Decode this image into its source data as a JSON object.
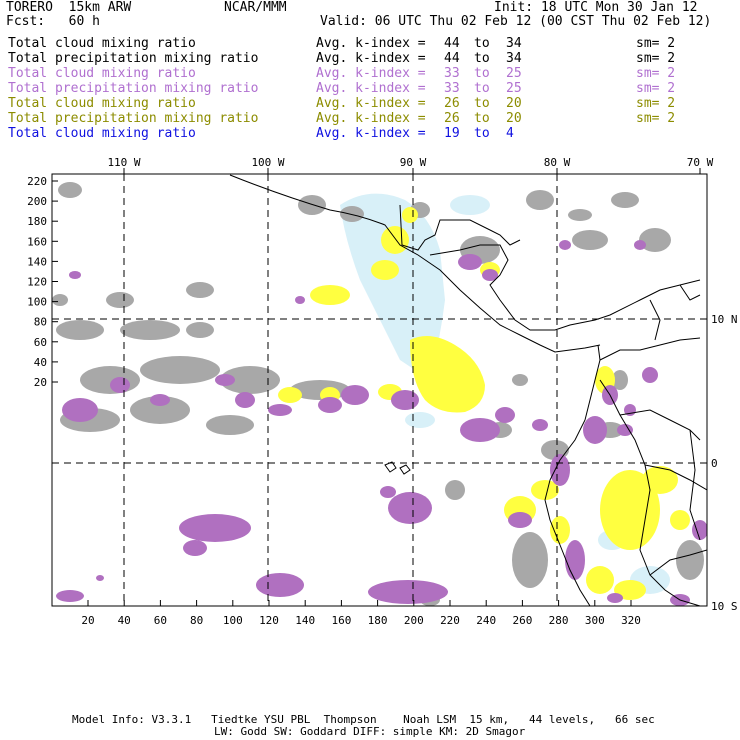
{
  "header": {
    "model": "TORERO  15km ARW",
    "org": "NCAR/MMM",
    "init": "Init: 18 UTC Mon 30 Jan 12",
    "fcst": "Fcst:   60 h",
    "valid": "Valid: 06 UTC Thu 02 Feb 12 (00 CST Thu 02 Feb 12)"
  },
  "legend": [
    {
      "field": "Total cloud mixing ratio",
      "idx": "Avg. k-index =",
      "from": "44",
      "to_word": "to",
      "to": "34",
      "sm": "sm= 2",
      "color": "#000000"
    },
    {
      "field": "Total precipitation mixing ratio",
      "idx": "Avg. k-index =",
      "from": "44",
      "to_word": "to",
      "to": "34",
      "sm": "sm= 2",
      "color": "#000000"
    },
    {
      "field": "Total cloud mixing ratio",
      "idx": "Avg. k-index =",
      "from": "33",
      "to_word": "to",
      "to": "25",
      "sm": "sm= 2",
      "color": "#b070d0"
    },
    {
      "field": "Total precipitation mixing ratio",
      "idx": "Avg. k-index =",
      "from": "33",
      "to_word": "to",
      "to": "25",
      "sm": "sm= 2",
      "color": "#b070d0"
    },
    {
      "field": "Total cloud mixing ratio",
      "idx": "Avg. k-index =",
      "from": "26",
      "to_word": "to",
      "to": "20",
      "sm": "sm= 2",
      "color": "#8c8c00"
    },
    {
      "field": "Total precipitation mixing ratio",
      "idx": "Avg. k-index =",
      "from": "26",
      "to_word": "to",
      "to": "20",
      "sm": "sm= 2",
      "color": "#8c8c00"
    },
    {
      "field": "Total cloud mixing ratio",
      "idx": "Avg. k-index =",
      "from": "19",
      "to_word": "to",
      "to": "4",
      "sm": "",
      "color": "#1010e0"
    }
  ],
  "map": {
    "lon_labels": [
      "110 W",
      "100 W",
      "90 W",
      "80 W",
      "70 W"
    ],
    "lat_labels": [
      "10 N",
      "0",
      "10 S"
    ],
    "y_ticks": [
      "220",
      "200",
      "180",
      "160",
      "140",
      "120",
      "100",
      "80",
      "60",
      "40",
      "20"
    ],
    "x_ticks": [
      "20",
      "40",
      "60",
      "80",
      "100",
      "120",
      "140",
      "160",
      "180",
      "200",
      "220",
      "240",
      "260",
      "280",
      "300",
      "320"
    ],
    "fill_colors": {
      "gray": "#a8a8a8",
      "violet": "#b070c0",
      "yellow": "#ffff40",
      "lightblue": "#d8f0f8"
    }
  },
  "footer": {
    "line1": "Model Info: V3.3.1   Tiedtke YSU PBL  Thompson    Noah LSM  15 km,   44 levels,   66 sec",
    "line2": "LW: Godd SW: Goddard DIFF: simple KM: 2D Smagor"
  }
}
